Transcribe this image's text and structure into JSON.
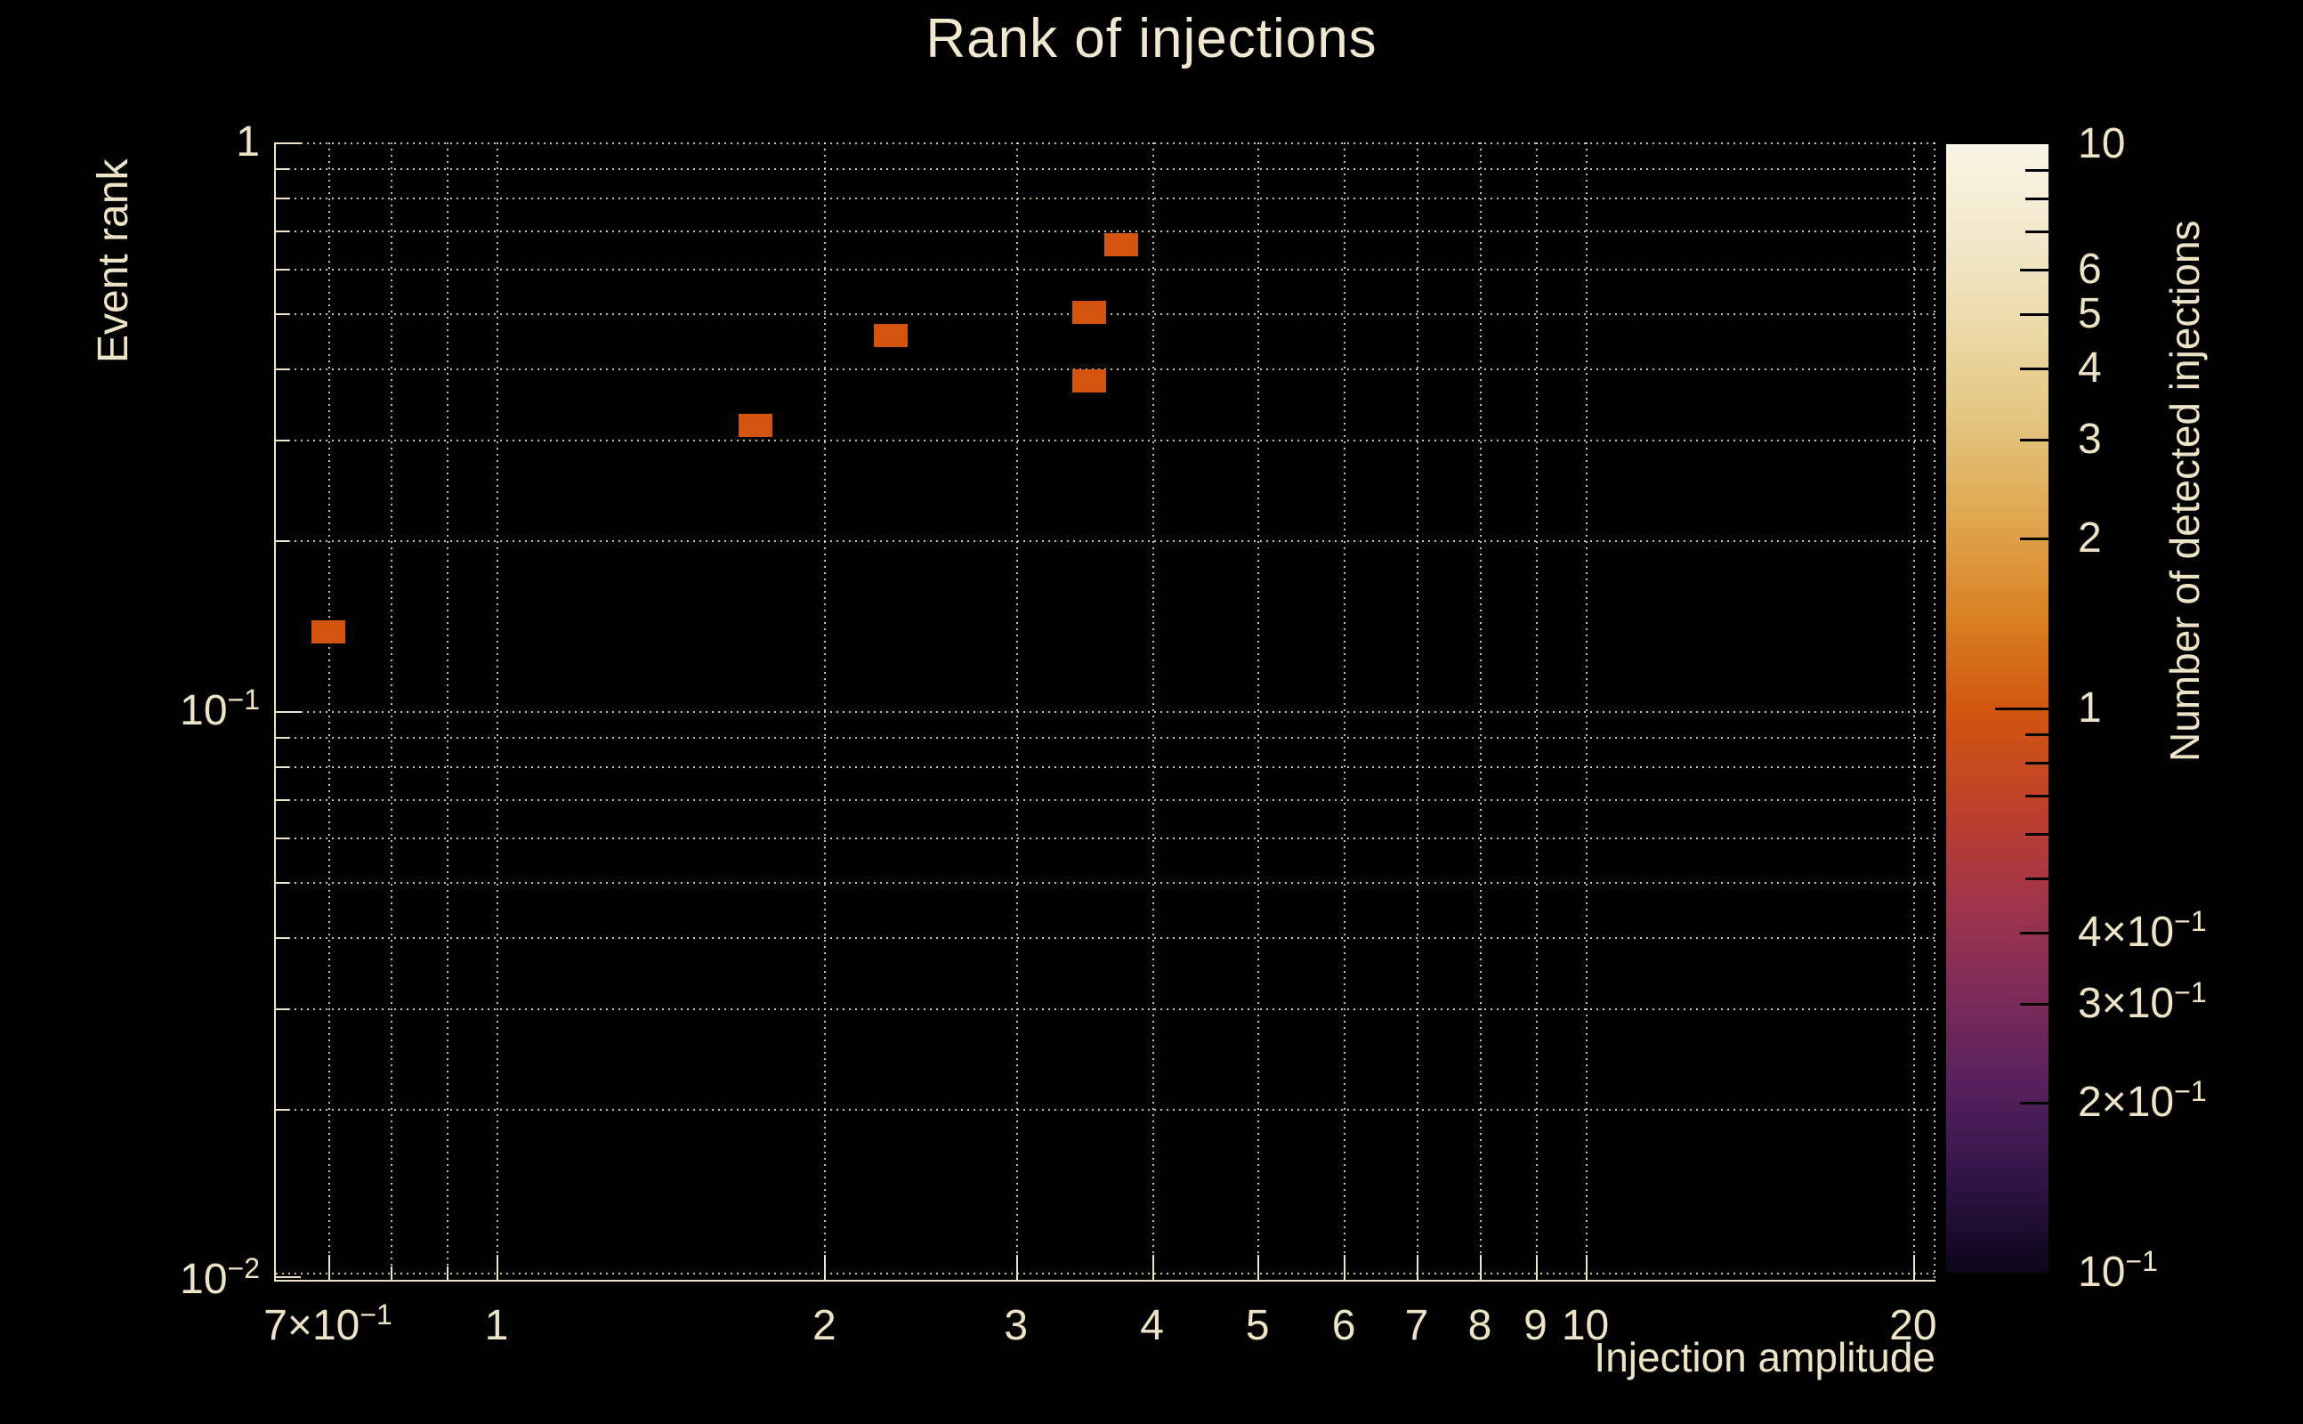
{
  "chart_data": {
    "type": "heatmap",
    "title": "Rank of injections",
    "xlabel": "Injection amplitude",
    "ylabel": "Event rank",
    "colorbar_label": "Number of detected injections",
    "x_scale": "log",
    "y_scale": "log",
    "z_scale": "log",
    "xlim": [
      0.627,
      20.97
    ],
    "ylim": [
      0.01,
      1
    ],
    "zlim": [
      0.1,
      10
    ],
    "grid": true,
    "grid_style": "dotted",
    "background_color": "#000000",
    "foreground_color": "#ede4c6",
    "bin_color": "#d2540f",
    "points": [
      {
        "x": 0.7,
        "y": 0.138,
        "value": 1
      },
      {
        "x": 1.73,
        "y": 0.318,
        "value": 1
      },
      {
        "x": 2.3,
        "y": 0.457,
        "value": 1
      },
      {
        "x": 3.5,
        "y": 0.381,
        "value": 1
      },
      {
        "x": 3.5,
        "y": 0.502,
        "value": 1
      },
      {
        "x": 3.75,
        "y": 0.661,
        "value": 1
      }
    ],
    "x_ticks": [
      {
        "v": 0.7,
        "label": "7×10",
        "exp": "−1"
      },
      {
        "v": 1,
        "label": "1"
      },
      {
        "v": 2,
        "label": "2"
      },
      {
        "v": 3,
        "label": "3"
      },
      {
        "v": 4,
        "label": "4"
      },
      {
        "v": 5,
        "label": "5"
      },
      {
        "v": 6,
        "label": "6"
      },
      {
        "v": 7,
        "label": "7"
      },
      {
        "v": 8,
        "label": "8"
      },
      {
        "v": 9,
        "label": "9"
      },
      {
        "v": 10,
        "label": "10"
      },
      {
        "v": 20,
        "label": "20"
      }
    ],
    "y_ticks": [
      {
        "v": 1,
        "label": "1"
      },
      {
        "v": 0.1,
        "label": "10",
        "exp": "−1"
      },
      {
        "v": 0.01,
        "label": "10",
        "exp": "−2"
      }
    ],
    "colorbar_ticks": [
      {
        "v": 10,
        "label": "10"
      },
      {
        "v": 6,
        "label": "6"
      },
      {
        "v": 5,
        "label": "5"
      },
      {
        "v": 4,
        "label": "4"
      },
      {
        "v": 3,
        "label": "3"
      },
      {
        "v": 2,
        "label": "2"
      },
      {
        "v": 1,
        "label": "1"
      },
      {
        "v": 0.4,
        "label": "4×10",
        "exp": "−1"
      },
      {
        "v": 0.3,
        "label": "3×10",
        "exp": "−1"
      },
      {
        "v": 0.2,
        "label": "2×10",
        "exp": "−1"
      },
      {
        "v": 0.1,
        "label": "10",
        "exp": "−1"
      }
    ],
    "colorbar_gradient": [
      "#f9f5e6",
      "#f2e8cb",
      "#ebd9a6",
      "#e3c47d",
      "#dfa64e",
      "#da8224",
      "#d2570f",
      "#c04128",
      "#a23549",
      "#7f2c58",
      "#57215d",
      "#311548",
      "#0c0618"
    ]
  }
}
